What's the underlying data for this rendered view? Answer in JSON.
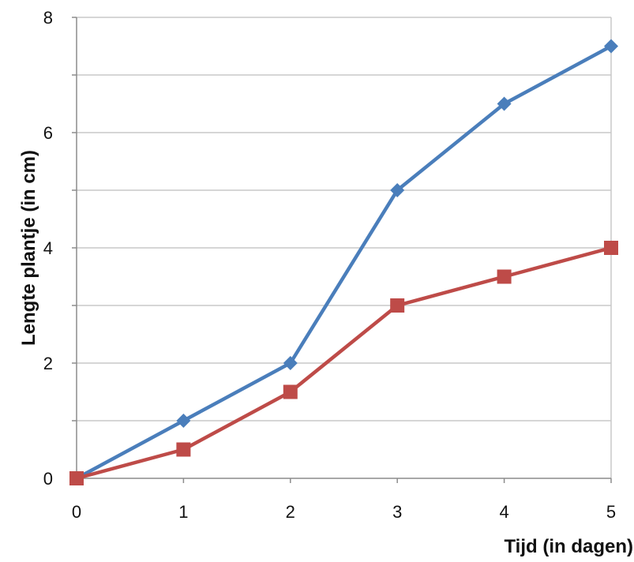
{
  "chart_data": {
    "type": "line",
    "title": "",
    "xlabel": "Tijd (in dagen)",
    "ylabel": "Lengte plantje (in cm)",
    "x": [
      0,
      1,
      2,
      3,
      4,
      5
    ],
    "xlim": [
      0,
      5
    ],
    "ylim": [
      0,
      8
    ],
    "x_ticks": [
      0,
      1,
      2,
      3,
      4,
      5
    ],
    "y_ticks": [
      0,
      2,
      4,
      6,
      8
    ],
    "y_minor_gridlines": [
      1,
      3,
      5,
      7
    ],
    "grid": true,
    "legend": "none",
    "series": [
      {
        "values": [
          0,
          1,
          2,
          5,
          6.5,
          7.5
        ],
        "color": "#4a7ebb",
        "marker": "diamond"
      },
      {
        "values": [
          0,
          0.5,
          1.5,
          3,
          3.5,
          4
        ],
        "color": "#be4b48",
        "marker": "square"
      }
    ],
    "colors": {
      "grid": "#c8c8c8",
      "axis": "#8c8c8c"
    }
  }
}
